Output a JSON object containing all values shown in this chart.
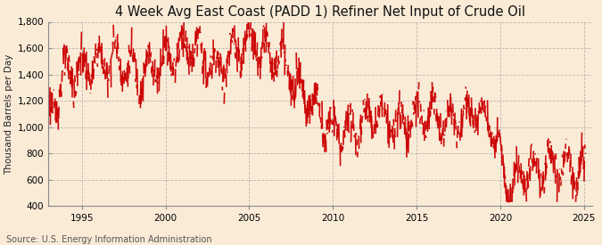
{
  "title": "4 Week Avg East Coast (PADD 1) Refiner Net Input of Crude Oil",
  "ylabel": "Thousand Barrels per Day",
  "source": "Source: U.S. Energy Information Administration",
  "ylim": [
    400,
    1800
  ],
  "yticks": [
    400,
    600,
    800,
    1000,
    1200,
    1400,
    1600,
    1800
  ],
  "xlim": [
    1993.0,
    2025.5
  ],
  "xticks": [
    1995,
    2000,
    2005,
    2010,
    2015,
    2020,
    2025
  ],
  "line_color": "#cc0000",
  "bg_color": "#faebd7",
  "plot_bg_color": "#faebd7",
  "grid_color": "#aaaaaa",
  "title_fontsize": 10.5,
  "label_fontsize": 7.5,
  "tick_fontsize": 7.5,
  "source_fontsize": 7.0
}
